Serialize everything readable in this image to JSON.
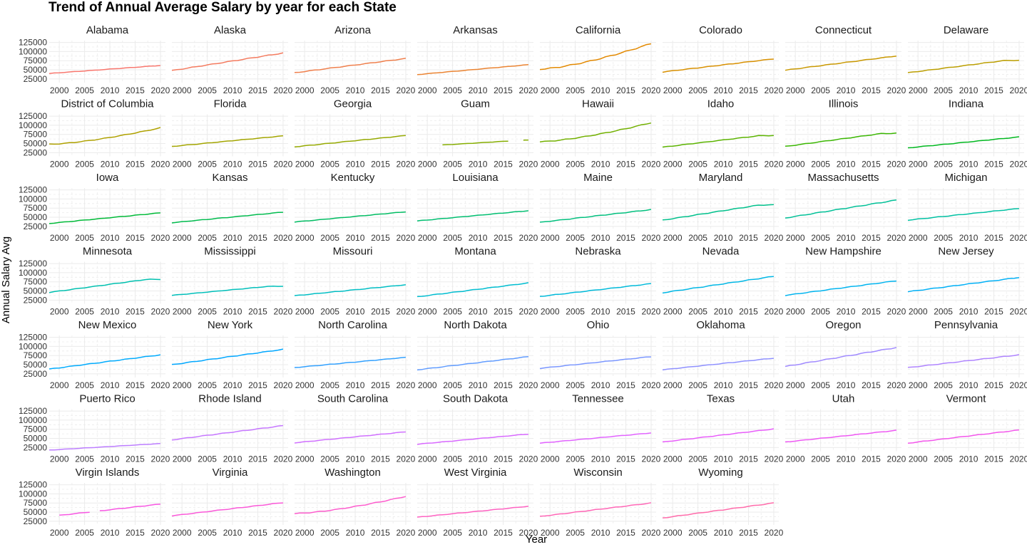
{
  "chart_data": {
    "type": "line",
    "title": "Trend of Annual Average Salary by year for each State",
    "xlabel": "Year",
    "ylabel": "Annual Salary Avg",
    "x_ticks": [
      2000,
      2005,
      2010,
      2015,
      2020
    ],
    "x_tick_labels": [
      "2000",
      "2005",
      "2010",
      "2015",
      "2020"
    ],
    "y_ticks": [
      25000,
      50000,
      75000,
      100000,
      125000
    ],
    "y_tick_labels": [
      "25000",
      "50000",
      "75000",
      "100000",
      "125000"
    ],
    "xlim": [
      1998,
      2021
    ],
    "ylim": [
      15000,
      130000
    ],
    "facet_cols": 8,
    "grid": true,
    "legend": "none",
    "years": [
      1998,
      1999,
      2000,
      2001,
      2002,
      2003,
      2004,
      2005,
      2006,
      2007,
      2008,
      2009,
      2010,
      2011,
      2012,
      2013,
      2014,
      2015,
      2016,
      2017,
      2018,
      2019,
      2020
    ],
    "series": [
      {
        "name": "Alabama",
        "color": "#F8766D",
        "start": 40000,
        "end": 62000,
        "shape": "linear"
      },
      {
        "name": "Alaska",
        "color": "#F47A5E",
        "start": 48000,
        "end": 96000,
        "shape": "linear"
      },
      {
        "name": "Arizona",
        "color": "#EF7F4C",
        "start": 42000,
        "end": 81000,
        "shape": "linear"
      },
      {
        "name": "Arkansas",
        "color": "#EA8331",
        "start": 37000,
        "end": 64000,
        "shape": "linear"
      },
      {
        "name": "California",
        "color": "#E38900",
        "start": 52000,
        "end": 122000,
        "shape": "convex"
      },
      {
        "name": "Colorado",
        "color": "#D89000",
        "start": 44000,
        "end": 80000,
        "shape": "linear"
      },
      {
        "name": "Connecticut",
        "color": "#C99800",
        "start": 49000,
        "end": 88000,
        "shape": "linear"
      },
      {
        "name": "Delaware",
        "color": "#BB9E00",
        "start": 42000,
        "end": 76000,
        "shape": "plateau"
      },
      {
        "name": "District of Columbia",
        "color": "#AFA100",
        "start": 48000,
        "end": 93000,
        "shape": "convex"
      },
      {
        "name": "Florida",
        "color": "#A3A500",
        "start": 42000,
        "end": 71000,
        "shape": "linear"
      },
      {
        "name": "Georgia",
        "color": "#95A900",
        "start": 41000,
        "end": 72000,
        "shape": "linear"
      },
      {
        "name": "Guam",
        "color": "#85AD00",
        "start": 42000,
        "end": 60000,
        "shape": "linear",
        "gaps": [
          1998,
          1999,
          2000,
          2001,
          2002,
          2017,
          2018
        ]
      },
      {
        "name": "Hawaii",
        "color": "#72B000",
        "start": 55000,
        "end": 107000,
        "shape": "convex"
      },
      {
        "name": "Idaho",
        "color": "#5BB300",
        "start": 40000,
        "end": 72000,
        "shape": "plateau"
      },
      {
        "name": "Illinois",
        "color": "#39B600",
        "start": 42000,
        "end": 78000,
        "shape": "plateau"
      },
      {
        "name": "Indiana",
        "color": "#00B81F",
        "start": 38000,
        "end": 68000,
        "shape": "linear"
      },
      {
        "name": "Iowa",
        "color": "#00BA38",
        "start": 33000,
        "end": 62000,
        "shape": "linear"
      },
      {
        "name": "Kansas",
        "color": "#00BB4E",
        "start": 35000,
        "end": 64000,
        "shape": "linear"
      },
      {
        "name": "Kentucky",
        "color": "#00BC62",
        "start": 37000,
        "end": 65000,
        "shape": "linear"
      },
      {
        "name": "Louisiana",
        "color": "#00BE70",
        "start": 40000,
        "end": 68000,
        "shape": "linear"
      },
      {
        "name": "Maine",
        "color": "#00BF7D",
        "start": 36000,
        "end": 71000,
        "shape": "linear"
      },
      {
        "name": "Maryland",
        "color": "#00C08B",
        "start": 42000,
        "end": 84000,
        "shape": "plateau"
      },
      {
        "name": "Massachusetts",
        "color": "#00C097",
        "start": 48000,
        "end": 97000,
        "shape": "linear"
      },
      {
        "name": "Michigan",
        "color": "#00C1A3",
        "start": 42000,
        "end": 74000,
        "shape": "linear"
      },
      {
        "name": "Minnesota",
        "color": "#00C0AF",
        "start": 46000,
        "end": 82000,
        "shape": "plateau"
      },
      {
        "name": "Mississippi",
        "color": "#00BFBA",
        "start": 38000,
        "end": 63000,
        "shape": "plateau"
      },
      {
        "name": "Missouri",
        "color": "#00BEC4",
        "start": 37000,
        "end": 67000,
        "shape": "linear"
      },
      {
        "name": "Montana",
        "color": "#00BDD0",
        "start": 34000,
        "end": 72000,
        "shape": "linear"
      },
      {
        "name": "Nebraska",
        "color": "#00BADA",
        "start": 35000,
        "end": 70000,
        "shape": "linear"
      },
      {
        "name": "Nevada",
        "color": "#00B7E5",
        "start": 45000,
        "end": 90000,
        "shape": "linear"
      },
      {
        "name": "New Hampshire",
        "color": "#00B4EF",
        "start": 38000,
        "end": 78000,
        "shape": "linear"
      },
      {
        "name": "New Jersey",
        "color": "#00B0F6",
        "start": 48000,
        "end": 87000,
        "shape": "linear"
      },
      {
        "name": "New Mexico",
        "color": "#00ABFD",
        "start": 38000,
        "end": 77000,
        "shape": "linear"
      },
      {
        "name": "New York",
        "color": "#00A7FF",
        "start": 50000,
        "end": 92000,
        "shape": "linear"
      },
      {
        "name": "North Carolina",
        "color": "#32A1FF",
        "start": 42000,
        "end": 70000,
        "shape": "linear"
      },
      {
        "name": "North Dakota",
        "color": "#619CFF",
        "start": 36000,
        "end": 72000,
        "shape": "linear"
      },
      {
        "name": "Ohio",
        "color": "#7B97FF",
        "start": 40000,
        "end": 72000,
        "shape": "linear"
      },
      {
        "name": "Oklahoma",
        "color": "#8F91FF",
        "start": 36000,
        "end": 68000,
        "shape": "linear"
      },
      {
        "name": "Oregon",
        "color": "#A08AFF",
        "start": 45000,
        "end": 97000,
        "shape": "linear"
      },
      {
        "name": "Pennsylvania",
        "color": "#AF84FF",
        "start": 42000,
        "end": 77000,
        "shape": "linear"
      },
      {
        "name": "Puerto Rico",
        "color": "#BC7DFF",
        "start": 18000,
        "end": 36000,
        "shape": "linear"
      },
      {
        "name": "Rhode Island",
        "color": "#C677FF",
        "start": 46000,
        "end": 85000,
        "shape": "linear"
      },
      {
        "name": "South Carolina",
        "color": "#D070FF",
        "start": 38000,
        "end": 68000,
        "shape": "linear"
      },
      {
        "name": "South Dakota",
        "color": "#D869FF",
        "start": 34000,
        "end": 62000,
        "shape": "linear"
      },
      {
        "name": "Tennessee",
        "color": "#E163FF",
        "start": 37000,
        "end": 65000,
        "shape": "linear"
      },
      {
        "name": "Texas",
        "color": "#E85DFA",
        "start": 40000,
        "end": 76000,
        "shape": "linear"
      },
      {
        "name": "Utah",
        "color": "#EE58F3",
        "start": 40000,
        "end": 72000,
        "shape": "linear"
      },
      {
        "name": "Vermont",
        "color": "#F356EB",
        "start": 37000,
        "end": 73000,
        "shape": "linear"
      },
      {
        "name": "Virgin Islands",
        "color": "#F756E2",
        "start": 38000,
        "end": 72000,
        "shape": "linear",
        "gaps": [
          1998,
          1999,
          2007
        ]
      },
      {
        "name": "Virginia",
        "color": "#FA58D8",
        "start": 40000,
        "end": 76000,
        "shape": "linear"
      },
      {
        "name": "Washington",
        "color": "#FD5CCD",
        "start": 46000,
        "end": 93000,
        "shape": "convex"
      },
      {
        "name": "West Virginia",
        "color": "#FE61C1",
        "start": 36000,
        "end": 66000,
        "shape": "linear"
      },
      {
        "name": "Wisconsin",
        "color": "#FF66B6",
        "start": 38000,
        "end": 75000,
        "shape": "linear"
      },
      {
        "name": "Wyoming",
        "color": "#FF6BAA",
        "start": 34000,
        "end": 75000,
        "shape": "linear"
      }
    ]
  }
}
